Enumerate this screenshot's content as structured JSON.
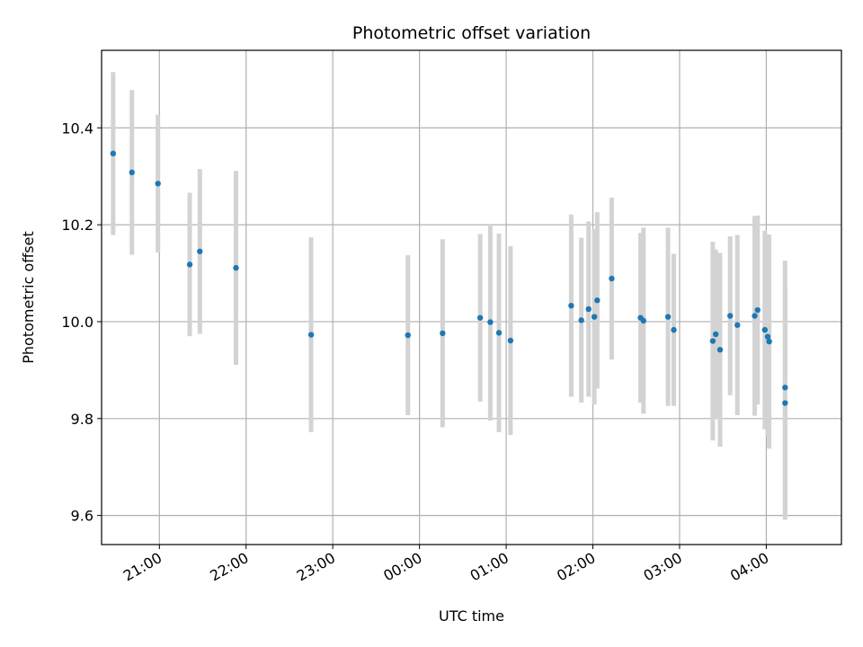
{
  "chart_data": {
    "type": "scatter",
    "title": "Photometric offset variation",
    "xlabel": "UTC time",
    "ylabel": "Photometric offset",
    "x_is_time": true,
    "x_ticks": [
      "21:00",
      "22:00",
      "23:00",
      "00:00",
      "01:00",
      "02:00",
      "03:00",
      "04:00"
    ],
    "y_ticks": [
      "9.6",
      "9.8",
      "10.0",
      "10.2",
      "10.4"
    ],
    "xlim": [
      "20:20",
      "04:52"
    ],
    "ylim": [
      9.54,
      10.56
    ],
    "grid": true,
    "colors": {
      "point": "#1f77b4",
      "errorbar": "#d3d3d3",
      "grid": "#b0b0b0"
    },
    "points": [
      {
        "t": "20:28",
        "y": 10.347,
        "err": 0.168
      },
      {
        "t": "20:41",
        "y": 10.308,
        "err": 0.17
      },
      {
        "t": "20:59",
        "y": 10.285,
        "err": 0.142
      },
      {
        "t": "21:21",
        "y": 10.118,
        "err": 0.148
      },
      {
        "t": "21:28",
        "y": 10.145,
        "err": 0.17
      },
      {
        "t": "21:53",
        "y": 10.111,
        "err": 0.2
      },
      {
        "t": "22:45",
        "y": 9.973,
        "err": 0.201
      },
      {
        "t": "23:52",
        "y": 9.972,
        "err": 0.165
      },
      {
        "t": "00:16",
        "y": 9.976,
        "err": 0.194
      },
      {
        "t": "00:42",
        "y": 10.008,
        "err": 0.173
      },
      {
        "t": "00:49",
        "y": 9.999,
        "err": 0.203
      },
      {
        "t": "00:55",
        "y": 9.977,
        "err": 0.205
      },
      {
        "t": "01:03",
        "y": 9.961,
        "err": 0.195
      },
      {
        "t": "01:45",
        "y": 10.033,
        "err": 0.188
      },
      {
        "t": "01:52",
        "y": 10.003,
        "err": 0.17
      },
      {
        "t": "01:57",
        "y": 10.026,
        "err": 0.181
      },
      {
        "t": "02:01",
        "y": 10.01,
        "err": 0.181
      },
      {
        "t": "02:03",
        "y": 10.044,
        "err": 0.182
      },
      {
        "t": "02:13",
        "y": 10.089,
        "err": 0.167
      },
      {
        "t": "02:33",
        "y": 10.008,
        "err": 0.175
      },
      {
        "t": "02:35",
        "y": 10.002,
        "err": 0.192
      },
      {
        "t": "02:52",
        "y": 10.01,
        "err": 0.184
      },
      {
        "t": "02:56",
        "y": 9.983,
        "err": 0.157
      },
      {
        "t": "03:23",
        "y": 9.96,
        "err": 0.205
      },
      {
        "t": "03:25",
        "y": 9.974,
        "err": 0.175
      },
      {
        "t": "03:28",
        "y": 9.942,
        "err": 0.2
      },
      {
        "t": "03:35",
        "y": 10.012,
        "err": 0.164
      },
      {
        "t": "03:40",
        "y": 9.993,
        "err": 0.186
      },
      {
        "t": "03:52",
        "y": 10.012,
        "err": 0.206
      },
      {
        "t": "03:54",
        "y": 10.024,
        "err": 0.195
      },
      {
        "t": "03:59",
        "y": 9.983,
        "err": 0.205
      },
      {
        "t": "04:01",
        "y": 9.969,
        "err": 0.205
      },
      {
        "t": "04:02",
        "y": 9.959,
        "err": 0.221
      },
      {
        "t": "04:13",
        "y": 9.864,
        "err": 0.262
      },
      {
        "t": "04:13",
        "y": 9.832,
        "err": 0.241
      }
    ]
  }
}
